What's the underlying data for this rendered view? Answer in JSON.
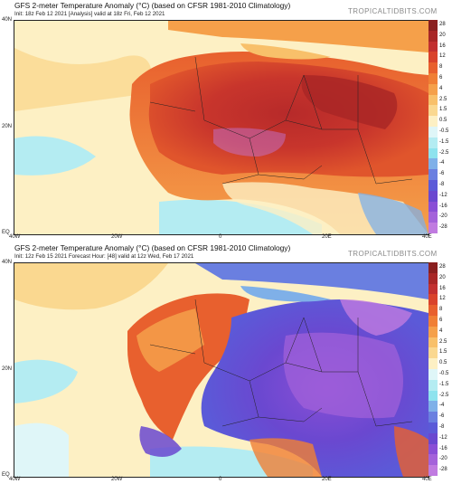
{
  "panels": [
    {
      "title": "GFS 2-meter Temperature Anomaly (°C) (based on CFSR 1981-2010 Climatology)",
      "subtitle": "Init: 18z Feb 12 2021  [Analysis]  valid at 18z Fri, Feb 12 2021",
      "brand": "TROPICALTIDBITS.COM",
      "lat_labels": [
        "40N",
        "20N",
        "EQ"
      ],
      "lon_labels": [
        "40W",
        "20W",
        "0",
        "20E",
        "40E"
      ]
    },
    {
      "title": "GFS 2-meter Temperature Anomaly (°C) (based on CFSR 1981-2010 Climatology)",
      "subtitle": "Init: 12z Feb 15 2021   Forecast Hour: [48]   valid at 12z Wed, Feb 17 2021",
      "brand": "TROPICALTIDBITS.COM",
      "lat_labels": [
        "40N",
        "20N",
        "EQ"
      ],
      "lon_labels": [
        "40W",
        "20W",
        "0",
        "20E",
        "40E"
      ]
    }
  ],
  "colorbar": {
    "labels": [
      "28",
      "20",
      "16",
      "12",
      "8",
      "6",
      "4",
      "2.5",
      "1.5",
      "0.5",
      "-0.5",
      "-1.5",
      "-2.5",
      "-4",
      "-6",
      "-8",
      "-12",
      "-16",
      "-20",
      "-28"
    ],
    "colors": [
      "#8a1f1f",
      "#a82626",
      "#c23030",
      "#d9432c",
      "#e8602e",
      "#f07f35",
      "#f5a04a",
      "#f8c06a",
      "#fad890",
      "#fdf0c4",
      "#dff6f8",
      "#b4ecf2",
      "#8ee3ee",
      "#7fb0e8",
      "#6a7fe0",
      "#5b5ad8",
      "#6a48d0",
      "#8a4fd6",
      "#a462da",
      "#c07be0"
    ]
  },
  "maps": {
    "panel1_anomaly": "warm",
    "panel2_anomaly": "cold"
  }
}
